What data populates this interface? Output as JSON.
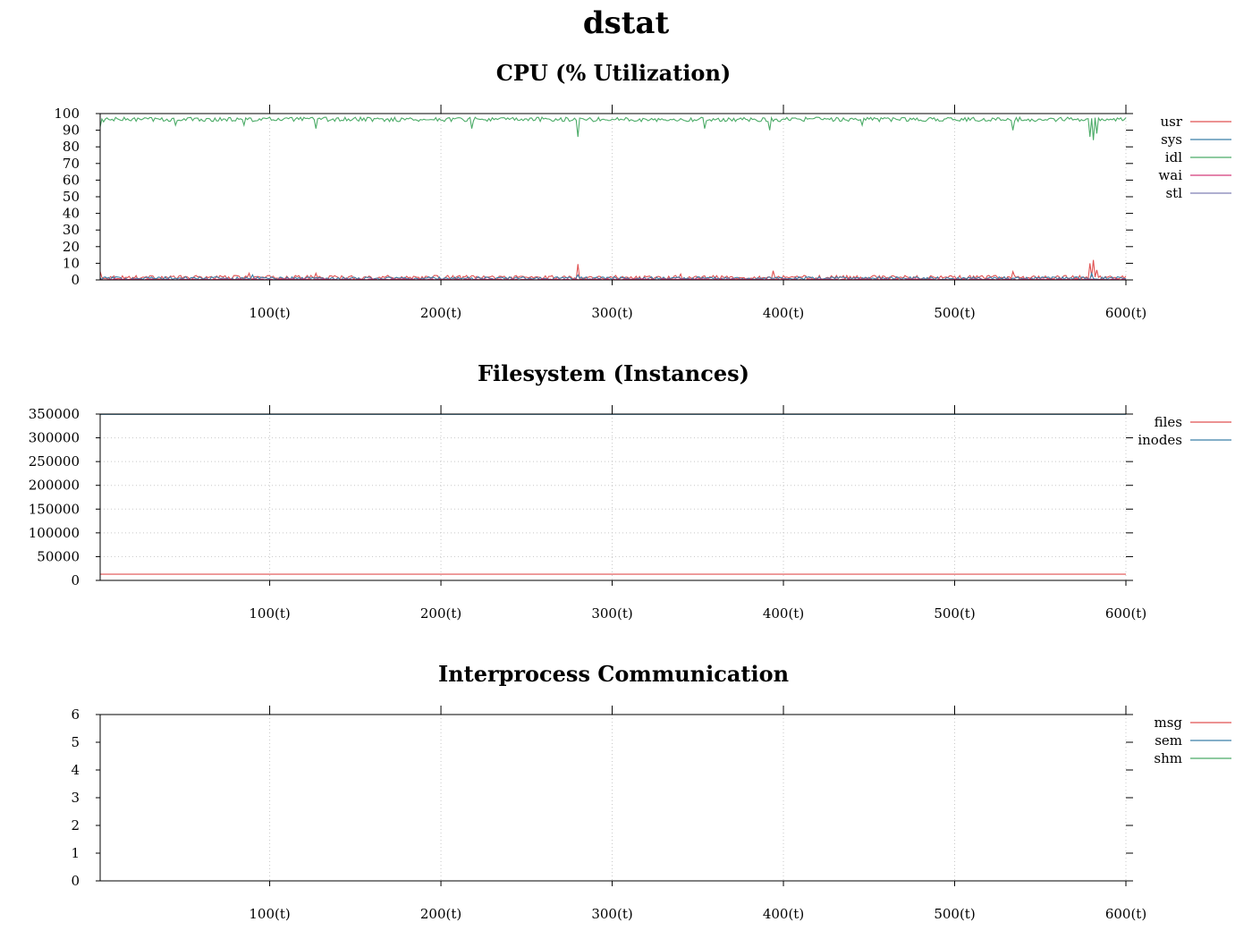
{
  "page": {
    "title": "dstat"
  },
  "chart_data": [
    {
      "type": "line",
      "title": "CPU (% Utilization)",
      "xlabel": "",
      "ylabel": "",
      "xlim": [
        1,
        600
      ],
      "ylim": [
        0,
        100
      ],
      "x_ticks": [
        100,
        200,
        300,
        400,
        500,
        600
      ],
      "x_tick_labels": [
        "100(t)",
        "200(t)",
        "300(t)",
        "400(t)",
        "500(t)",
        "600(t)"
      ],
      "y_ticks": [
        0,
        10,
        20,
        30,
        40,
        50,
        60,
        70,
        80,
        90,
        100
      ],
      "y_tick_labels": [
        "0",
        "10",
        "20",
        "30",
        "40",
        "50",
        "60",
        "70",
        "80",
        "90",
        "100"
      ],
      "grid": "vertical dotted",
      "legend_position": "right",
      "series": [
        {
          "name": "usr",
          "color": "#e05252",
          "baseline": 1.5,
          "jitter": 1.2,
          "spikes": [
            [
              1,
              5
            ],
            [
              88,
              4
            ],
            [
              127,
              4
            ],
            [
              280,
              9.5
            ],
            [
              340,
              3.5
            ],
            [
              394,
              5.5
            ],
            [
              534,
              5
            ],
            [
              579,
              10
            ],
            [
              581,
              12
            ],
            [
              583,
              6
            ]
          ]
        },
        {
          "name": "sys",
          "color": "#3a7fa8",
          "baseline": 1.0,
          "jitter": 0.9,
          "spikes": [
            [
              90,
              3
            ],
            [
              280,
              3
            ],
            [
              580,
              4
            ]
          ]
        },
        {
          "name": "idl",
          "color": "#4bab67",
          "baseline": 96.5,
          "jitter": 1.3,
          "spikes": [
            [
              1,
              92
            ],
            [
              3,
              95
            ],
            [
              45,
              93
            ],
            [
              85,
              93
            ],
            [
              127,
              91
            ],
            [
              218,
              91
            ],
            [
              280,
              86
            ],
            [
              354,
              91
            ],
            [
              392,
              90
            ],
            [
              446,
              93
            ],
            [
              534,
              90
            ],
            [
              579,
              86
            ],
            [
              581,
              84
            ],
            [
              583,
              88
            ]
          ]
        },
        {
          "name": "wai",
          "color": "#d43a7a",
          "baseline": 0.3,
          "jitter": 0.3,
          "spikes": []
        },
        {
          "name": "stl",
          "color": "#7f7fb5",
          "baseline": 0,
          "jitter": 0,
          "spikes": []
        }
      ]
    },
    {
      "type": "line",
      "title": "Filesystem (Instances)",
      "xlabel": "",
      "ylabel": "",
      "xlim": [
        1,
        600
      ],
      "ylim": [
        0,
        350000
      ],
      "x_ticks": [
        100,
        200,
        300,
        400,
        500,
        600
      ],
      "x_tick_labels": [
        "100(t)",
        "200(t)",
        "300(t)",
        "400(t)",
        "500(t)",
        "600(t)"
      ],
      "y_ticks": [
        0,
        50000,
        100000,
        150000,
        200000,
        250000,
        300000,
        350000
      ],
      "y_tick_labels": [
        "0",
        "50000",
        "100000",
        "150000",
        "200000",
        "250000",
        "300000",
        "350000"
      ],
      "grid": "vertical and horizontal dotted",
      "legend_position": "right",
      "series": [
        {
          "name": "files",
          "color": "#e05252",
          "baseline": 13000,
          "jitter": 0,
          "spikes": []
        },
        {
          "name": "inodes",
          "color": "#3a7fa8",
          "baseline": 349500,
          "jitter": 0,
          "spikes": []
        }
      ]
    },
    {
      "type": "line",
      "title": "Interprocess Communication",
      "xlabel": "",
      "ylabel": "",
      "xlim": [
        1,
        600
      ],
      "ylim": [
        0,
        6
      ],
      "x_ticks": [
        100,
        200,
        300,
        400,
        500,
        600
      ],
      "x_tick_labels": [
        "100(t)",
        "200(t)",
        "300(t)",
        "400(t)",
        "500(t)",
        "600(t)"
      ],
      "y_ticks": [
        0,
        1,
        2,
        3,
        4,
        5,
        6
      ],
      "y_tick_labels": [
        "0",
        "1",
        "2",
        "3",
        "4",
        "5",
        "6"
      ],
      "grid": "vertical dotted",
      "legend_position": "right",
      "series": [
        {
          "name": "msg",
          "color": "#e05252",
          "baseline": 0,
          "jitter": 0,
          "spikes": []
        },
        {
          "name": "sem",
          "color": "#3a7fa8",
          "baseline": 0,
          "jitter": 0,
          "spikes": []
        },
        {
          "name": "shm",
          "color": "#4bab67",
          "baseline": 6,
          "jitter": 0,
          "spikes": []
        }
      ]
    }
  ]
}
